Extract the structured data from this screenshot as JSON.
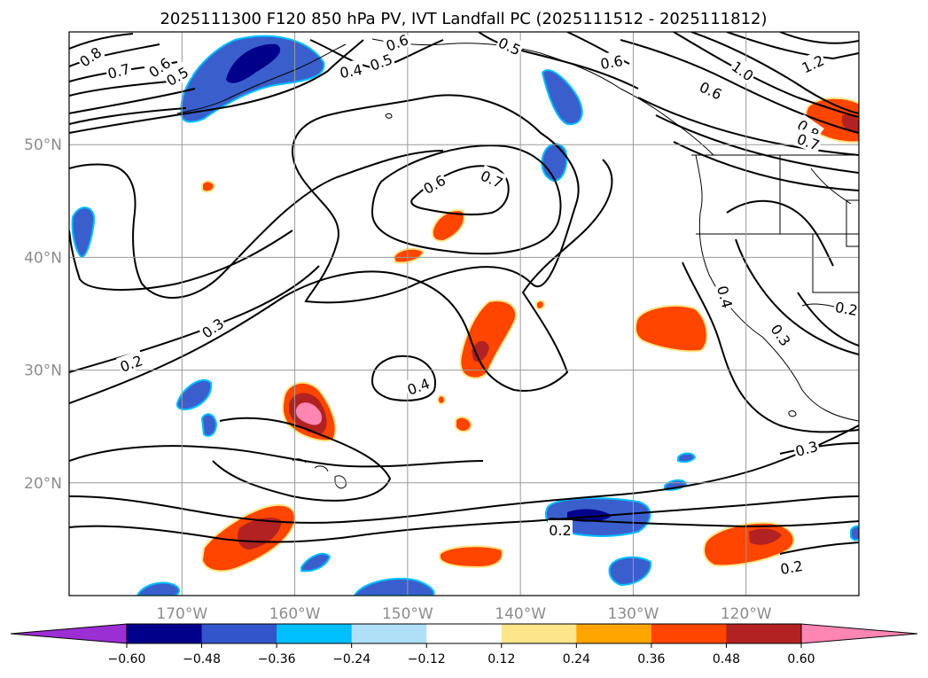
{
  "chart_data": {
    "type": "map",
    "title": "2025111300 F120 850 hPa PV, IVT Landfall PC (2025111512 - 2025111812)",
    "lon_range": [
      -180,
      -110
    ],
    "lat_range": [
      10,
      60
    ],
    "lon_ticks": [
      -170,
      -160,
      -150,
      -140,
      -130,
      -120
    ],
    "lon_tick_labels": [
      "170°W",
      "160°W",
      "150°W",
      "140°W",
      "130°W",
      "120°W"
    ],
    "lat_ticks": [
      20,
      30,
      40,
      50
    ],
    "lat_tick_labels": [
      "20°N",
      "30°N",
      "40°N",
      "50°N"
    ],
    "gridlines": true,
    "colorbar": {
      "ticks": [
        -0.6,
        -0.48,
        -0.36,
        -0.24,
        -0.12,
        0.12,
        0.24,
        0.36,
        0.48,
        0.6
      ],
      "tick_labels": [
        "−0.60",
        "−0.48",
        "−0.36",
        "−0.24",
        "−0.12",
        "0.12",
        "0.24",
        "0.36",
        "0.48",
        "0.60"
      ],
      "colors": [
        "#9b2fd4",
        "#00008b",
        "#3355cc",
        "#00bfff",
        "#b0e0f8",
        "#ffffff",
        "#fde68a",
        "#ffa500",
        "#ff4500",
        "#b22222",
        "#ff85b3"
      ],
      "extend": "both"
    },
    "contour_labels": [
      "0.8",
      "0.7",
      "0.6",
      "0.5",
      "0.6",
      "0.5",
      "0.5",
      "0.4",
      "0.6",
      "1.0",
      "1.2",
      "0.6",
      "0.8",
      "0.7",
      "0.6",
      "0.7",
      "0.3",
      "0.2",
      "0.4",
      "0.4",
      "0.2",
      "0.3",
      "0.3",
      "0.2",
      "0.2"
    ],
    "shaded_regions": [
      {
        "name": "gulf-of-alaska-negative",
        "sign": "negative",
        "lon": -160,
        "lat": 56,
        "peak": -0.48
      },
      {
        "name": "sw-alaska-coast-negative",
        "sign": "negative",
        "lon": -137,
        "lat": 54,
        "peak": -0.36
      },
      {
        "name": "offshore-wa-negative",
        "sign": "negative",
        "lon": -137.5,
        "lat": 48,
        "peak": -0.36
      },
      {
        "name": "west-pacific-negative",
        "sign": "negative",
        "lon": -178,
        "lat": 43,
        "peak": -0.36
      },
      {
        "name": "hawaii-west-negative",
        "sign": "negative",
        "lon": -167,
        "lat": 28,
        "peak": -0.36
      },
      {
        "name": "subtropical-east-negative",
        "sign": "negative",
        "lon": -131,
        "lat": 16,
        "peak": -0.48
      },
      {
        "name": "canada-coast-positive",
        "sign": "positive",
        "lon": -111,
        "lat": 52,
        "peak": 0.48
      },
      {
        "name": "mid-pacific-positive",
        "sign": "positive",
        "lon": -145,
        "lat": 43,
        "peak": 0.36
      },
      {
        "name": "north-hawaii-positive",
        "sign": "positive",
        "lon": -160,
        "lat": 27,
        "peak": 0.6
      },
      {
        "name": "central-positive",
        "sign": "positive",
        "lon": -143.5,
        "lat": 33,
        "peak": 0.48
      },
      {
        "name": "baja-offshore-positive",
        "sign": "positive",
        "lon": -127,
        "lat": 34,
        "peak": 0.36
      },
      {
        "name": "southwest-positive",
        "sign": "positive",
        "lon": -163,
        "lat": 15,
        "peak": 0.48
      },
      {
        "name": "south-central-positive",
        "sign": "positive",
        "lon": -142.5,
        "lat": 13.5,
        "peak": 0.36
      },
      {
        "name": "southeast-positive",
        "sign": "positive",
        "lon": -120,
        "lat": 14.5,
        "peak": 0.48
      }
    ]
  }
}
